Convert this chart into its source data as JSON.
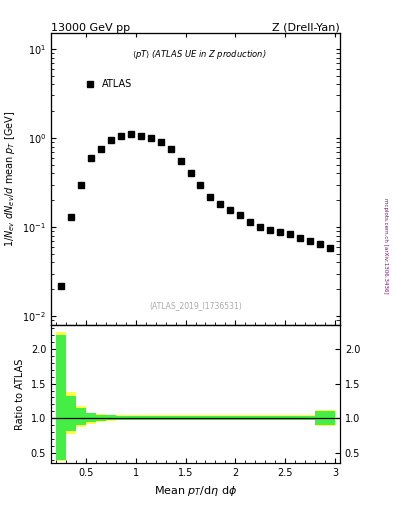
{
  "title_top": "13000 GeV pp",
  "title_top_right": "Z (Drell-Yan)",
  "annotation": "(ATLAS_2019_I1736531)",
  "side_text": "mcplots.cern.ch [arXiv:1306.3436]",
  "legend_label": "<pT> (ATLAS UE in Z production)",
  "atlas_label": "ATLAS",
  "ylabel": "1/N_{ev} dN_{ev}/d mean p_{T} [GeV]",
  "ylabel_ratio": "Ratio to ATLAS",
  "main_x": [
    0.25,
    0.35,
    0.45,
    0.55,
    0.65,
    0.75,
    0.85,
    0.95,
    1.05,
    1.15,
    1.25,
    1.35,
    1.45,
    1.55,
    1.65,
    1.75,
    1.85,
    1.95,
    2.05,
    2.15,
    2.25,
    2.35,
    2.45,
    2.55,
    2.65,
    2.75,
    2.85,
    2.95
  ],
  "main_y": [
    0.022,
    0.13,
    0.3,
    0.6,
    0.75,
    0.95,
    1.05,
    1.1,
    1.05,
    1.0,
    0.9,
    0.75,
    0.55,
    0.4,
    0.3,
    0.22,
    0.18,
    0.155,
    0.135,
    0.115,
    0.1,
    0.093,
    0.088,
    0.083,
    0.075,
    0.07,
    0.065,
    0.058
  ],
  "main_xerr": 0.05,
  "ylim_main": [
    0.008,
    15.0
  ],
  "xlim": [
    0.15,
    3.05
  ],
  "ratio_yellow_edges": [
    0.2,
    0.3,
    0.4,
    0.5,
    0.6,
    0.7,
    0.8,
    0.9,
    1.0,
    1.1,
    1.2,
    1.3,
    1.4,
    1.5,
    1.6,
    1.7,
    1.8,
    1.9,
    2.0,
    2.1,
    2.2,
    2.3,
    2.4,
    2.5,
    2.6,
    2.7,
    2.8,
    2.9,
    3.0
  ],
  "ratio_yellow_lo": [
    0.38,
    0.78,
    0.87,
    0.92,
    0.95,
    0.96,
    0.97,
    0.97,
    0.97,
    0.97,
    0.97,
    0.97,
    0.97,
    0.97,
    0.97,
    0.97,
    0.97,
    0.97,
    0.97,
    0.97,
    0.97,
    0.97,
    0.97,
    0.97,
    0.97,
    0.97,
    0.89,
    0.89
  ],
  "ratio_yellow_hi": [
    2.25,
    1.38,
    1.18,
    1.08,
    1.06,
    1.05,
    1.04,
    1.04,
    1.04,
    1.04,
    1.04,
    1.04,
    1.04,
    1.04,
    1.04,
    1.04,
    1.04,
    1.04,
    1.04,
    1.04,
    1.04,
    1.04,
    1.04,
    1.04,
    1.04,
    1.04,
    1.12,
    1.12
  ],
  "ratio_green_lo": [
    0.4,
    0.82,
    0.9,
    0.94,
    0.96,
    0.97,
    0.975,
    0.975,
    0.975,
    0.975,
    0.975,
    0.975,
    0.975,
    0.975,
    0.975,
    0.975,
    0.975,
    0.975,
    0.975,
    0.975,
    0.975,
    0.975,
    0.975,
    0.975,
    0.975,
    0.975,
    0.91,
    0.91
  ],
  "ratio_green_hi": [
    2.2,
    1.32,
    1.15,
    1.07,
    1.05,
    1.04,
    1.03,
    1.03,
    1.03,
    1.03,
    1.03,
    1.03,
    1.03,
    1.03,
    1.03,
    1.03,
    1.03,
    1.03,
    1.03,
    1.03,
    1.03,
    1.03,
    1.03,
    1.03,
    1.03,
    1.03,
    1.1,
    1.1
  ],
  "ylim_ratio": [
    0.35,
    2.35
  ],
  "yticks_ratio": [
    0.5,
    1.0,
    1.5,
    2.0
  ],
  "color_data": "#000000",
  "color_yellow": "#ffff44",
  "color_green": "#44ee44",
  "marker_style": "s",
  "marker_size": 4,
  "title_fontsize": 8,
  "label_fontsize": 7,
  "tick_fontsize": 7
}
